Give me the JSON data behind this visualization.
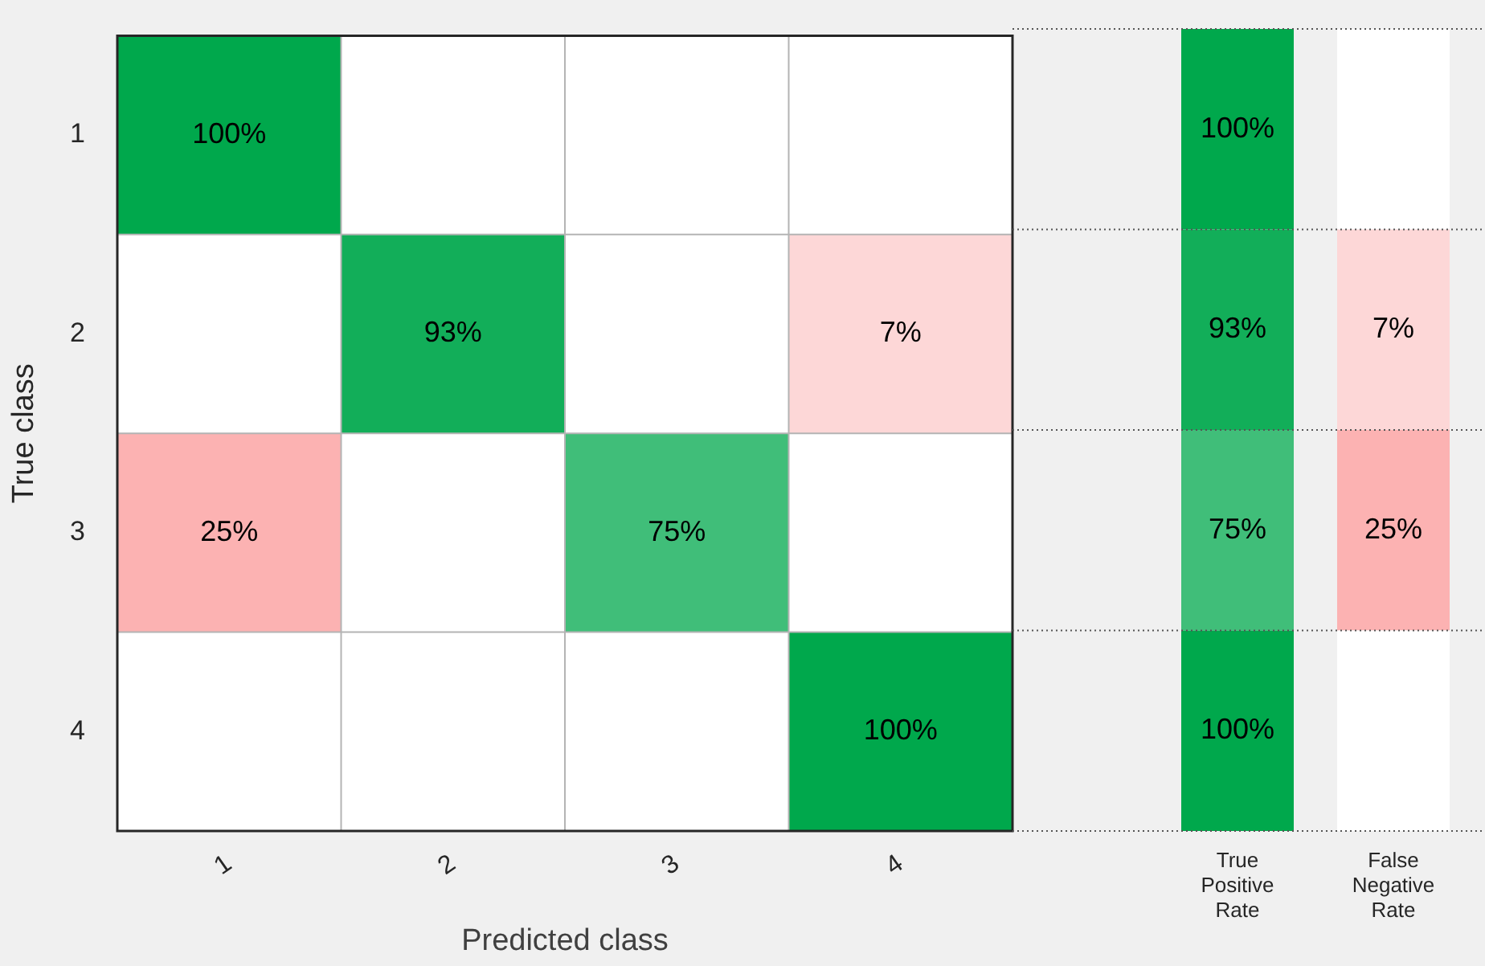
{
  "chart_data": [
    {
      "type": "heatmap",
      "xlabel": "Predicted class",
      "ylabel": "True class",
      "categories": [
        "1",
        "2",
        "3",
        "4"
      ],
      "y_categories": [
        "1",
        "2",
        "3",
        "4"
      ],
      "cells": [
        [
          100,
          null,
          null,
          null
        ],
        [
          null,
          93,
          null,
          7
        ],
        [
          25,
          null,
          75,
          null
        ],
        [
          null,
          null,
          null,
          100
        ]
      ],
      "cell_labels": [
        [
          "100%",
          null,
          null,
          null
        ],
        [
          null,
          "93%",
          null,
          "7%"
        ],
        [
          "25%",
          null,
          "75%",
          null
        ],
        [
          null,
          null,
          null,
          "100%"
        ]
      ],
      "grid": true
    },
    {
      "type": "heatmap",
      "categories": [
        "True Positive Rate",
        "False Negative Rate"
      ],
      "y_categories": [
        "1",
        "2",
        "3",
        "4"
      ],
      "cells": [
        [
          100,
          null
        ],
        [
          93,
          7
        ],
        [
          75,
          25
        ],
        [
          100,
          null
        ]
      ],
      "cell_labels": [
        [
          "100%",
          null
        ],
        [
          "93%",
          "7%"
        ],
        [
          "75%",
          "25%"
        ],
        [
          "100%",
          null
        ]
      ],
      "grid": "y",
      "tick_labels": "x"
    }
  ]
}
